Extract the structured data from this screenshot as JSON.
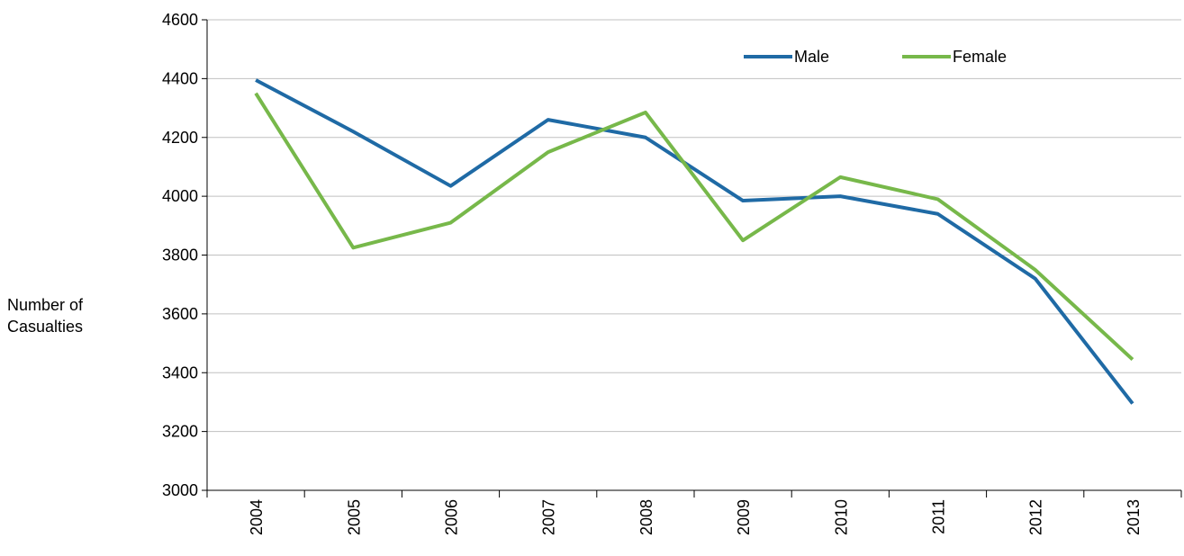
{
  "chart_data": {
    "type": "line",
    "y_label": "Number of Casualties",
    "categories": [
      "2004",
      "2005",
      "2006",
      "2007",
      "2008",
      "2009",
      "2010",
      "2011",
      "2012",
      "2013"
    ],
    "series": [
      {
        "name": "Male",
        "color": "#1f6aa5",
        "values": [
          4395,
          4220,
          4035,
          4260,
          4200,
          3985,
          4000,
          3940,
          3720,
          3295
        ]
      },
      {
        "name": "Female",
        "color": "#77b84a",
        "values": [
          4350,
          3825,
          3910,
          4150,
          4285,
          3850,
          4065,
          3990,
          3750,
          3445
        ]
      }
    ],
    "ylim": [
      3000,
      4600
    ],
    "yticks": [
      3000,
      3200,
      3400,
      3600,
      3800,
      4000,
      4200,
      4400,
      4600
    ],
    "grid": true,
    "legend": "top"
  }
}
